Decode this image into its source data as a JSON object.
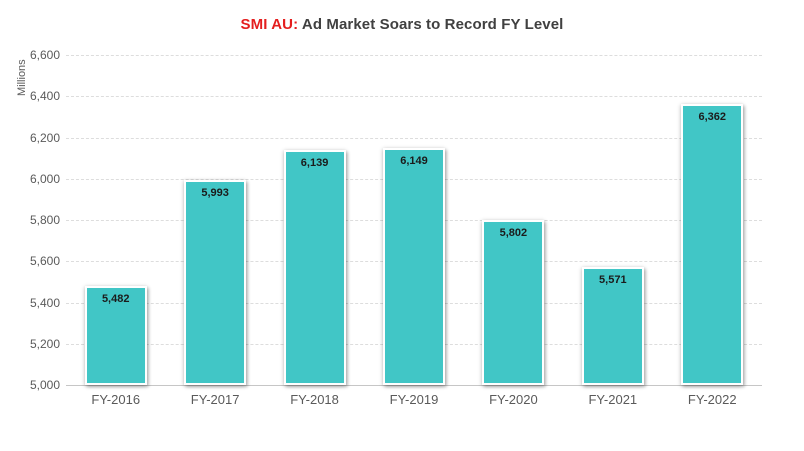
{
  "title": {
    "accent": "SMI AU:",
    "rest": " Ad Market Soars to Record FY Level"
  },
  "chart_data": {
    "type": "bar",
    "title": "SMI AU: Ad Market Soars to Record FY Level",
    "categories": [
      "FY-2016",
      "FY-2017",
      "FY-2018",
      "FY-2019",
      "FY-2020",
      "FY-2021",
      "FY-2022"
    ],
    "values": [
      5482,
      5993,
      6139,
      6149,
      5802,
      5571,
      6362
    ],
    "value_labels": [
      "5,482",
      "5,993",
      "6,139",
      "6,149",
      "5,802",
      "5,571",
      "6,362"
    ],
    "xlabel": "",
    "ylabel": "Millions",
    "ylim": [
      5000,
      6600
    ],
    "ytick_interval": 200,
    "ytick_labels": [
      "5,000",
      "5,200",
      "5,400",
      "5,600",
      "5,800",
      "6,000",
      "6,200",
      "6,400",
      "6,600"
    ],
    "grid": "horizontal-dashed",
    "legend": "none",
    "colors": {
      "bar_fill": "#41C6C6",
      "bar_border": "#FFFFFF",
      "title_accent": "#E41E1E",
      "title_text": "#404040",
      "axis_text": "#5A5A5A",
      "value_label": "#1B1B1B",
      "gridline": "#DDDDDD",
      "baseline": "#C6C6C6"
    }
  }
}
